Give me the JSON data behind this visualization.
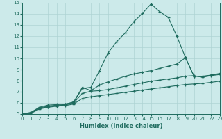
{
  "xlabel": "Humidex (Indice chaleur)",
  "xlim": [
    0,
    23
  ],
  "ylim": [
    5,
    15
  ],
  "background_color": "#cceaea",
  "line_color": "#1e6b5e",
  "grid_color": "#aed4d4",
  "series": [
    {
      "x": [
        0,
        1,
        2,
        3,
        4,
        5,
        6,
        7,
        8,
        9,
        10,
        11,
        12,
        13,
        14,
        15,
        16,
        17,
        18,
        19,
        20,
        21,
        22,
        23
      ],
      "y": [
        5.0,
        5.15,
        5.6,
        5.8,
        5.85,
        5.9,
        6.05,
        7.3,
        7.4,
        8.9,
        10.5,
        11.5,
        12.3,
        13.3,
        14.05,
        14.9,
        14.2,
        13.7,
        12.0,
        10.1,
        8.4,
        8.4,
        8.5,
        8.65
      ]
    },
    {
      "x": [
        0,
        1,
        2,
        3,
        4,
        5,
        6,
        7,
        8,
        9,
        10,
        11,
        12,
        13,
        14,
        15,
        16,
        17,
        18,
        19,
        20,
        21,
        22,
        23
      ],
      "y": [
        5.0,
        5.1,
        5.55,
        5.7,
        5.8,
        5.85,
        6.1,
        7.4,
        7.1,
        7.6,
        7.9,
        8.15,
        8.4,
        8.6,
        8.75,
        8.9,
        9.1,
        9.3,
        9.5,
        10.05,
        8.4,
        8.35,
        8.5,
        8.6
      ]
    },
    {
      "x": [
        0,
        1,
        2,
        3,
        4,
        5,
        6,
        7,
        8,
        9,
        10,
        11,
        12,
        13,
        14,
        15,
        16,
        17,
        18,
        19,
        20,
        21,
        22,
        23
      ],
      "y": [
        5.0,
        5.1,
        5.5,
        5.65,
        5.75,
        5.8,
        6.0,
        6.85,
        7.05,
        7.1,
        7.2,
        7.35,
        7.5,
        7.65,
        7.8,
        7.95,
        8.05,
        8.15,
        8.25,
        8.4,
        8.45,
        8.3,
        8.45,
        8.55
      ]
    },
    {
      "x": [
        0,
        1,
        2,
        3,
        4,
        5,
        6,
        7,
        8,
        9,
        10,
        11,
        12,
        13,
        14,
        15,
        16,
        17,
        18,
        19,
        20,
        21,
        22,
        23
      ],
      "y": [
        5.0,
        5.05,
        5.45,
        5.6,
        5.7,
        5.75,
        5.9,
        6.4,
        6.55,
        6.65,
        6.75,
        6.85,
        6.95,
        7.05,
        7.15,
        7.25,
        7.35,
        7.45,
        7.55,
        7.65,
        7.7,
        7.75,
        7.85,
        7.95
      ]
    }
  ]
}
